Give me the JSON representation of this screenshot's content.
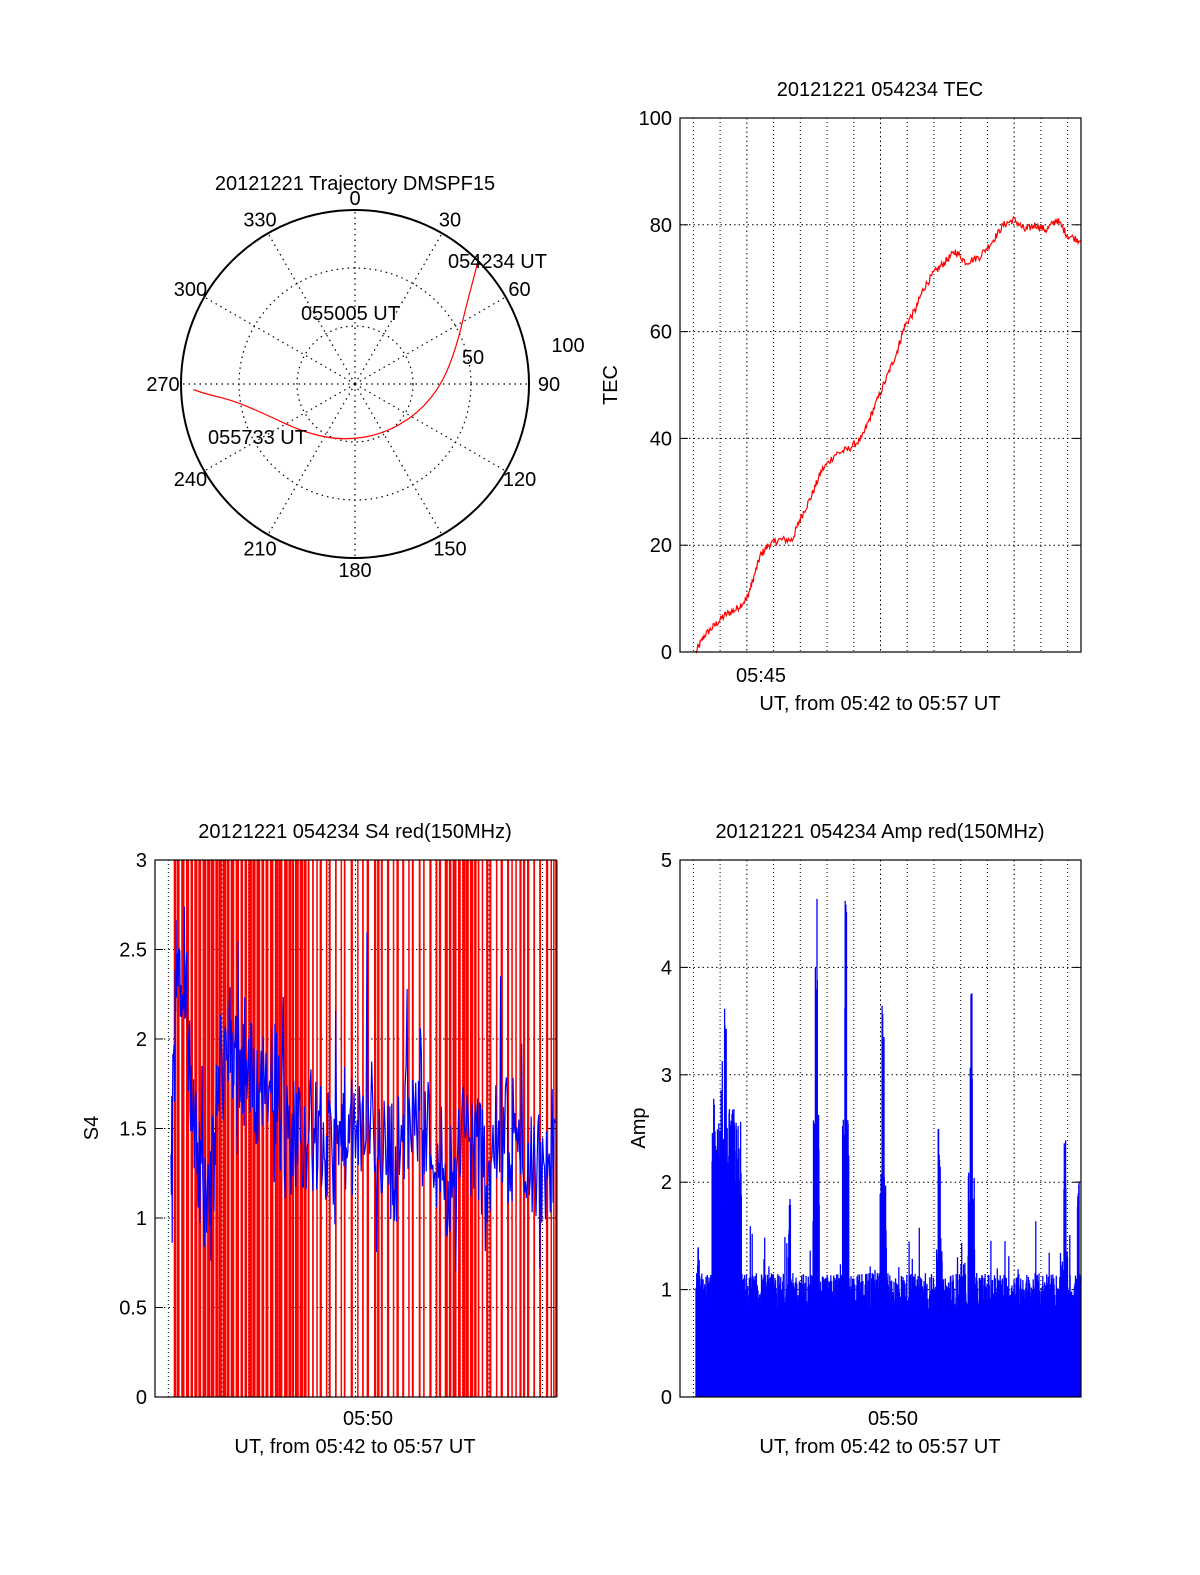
{
  "chart_data": [
    {
      "type": "polar",
      "title": "20121221 Trajectory DMSPF15",
      "angle_ticks": [
        "0",
        "30",
        "60",
        "90",
        "120",
        "150",
        "180",
        "210",
        "240",
        "270",
        "300",
        "330"
      ],
      "radius_ticks": [
        "50",
        "100"
      ],
      "radius_max": 100,
      "trajectory": {
        "color": "#ff0000",
        "points": [
          {
            "az": 45,
            "r": 100
          },
          {
            "az": 48,
            "r": 92
          },
          {
            "az": 55,
            "r": 78
          },
          {
            "az": 70,
            "r": 62
          },
          {
            "az": 90,
            "r": 50
          },
          {
            "az": 115,
            "r": 40
          },
          {
            "az": 150,
            "r": 33
          },
          {
            "az": 190,
            "r": 33
          },
          {
            "az": 225,
            "r": 40
          },
          {
            "az": 252,
            "r": 55
          },
          {
            "az": 262,
            "r": 70
          },
          {
            "az": 266,
            "r": 85
          },
          {
            "az": 268,
            "r": 93
          }
        ]
      },
      "annotations": [
        {
          "text": "054234 UT",
          "az": 45,
          "r": 100
        },
        {
          "text": "055005 UT",
          "az": 330,
          "r": 35
        },
        {
          "text": "055733 UT",
          "az": 250,
          "r": 96
        }
      ]
    },
    {
      "type": "line",
      "title": "20121221 054234 TEC",
      "xlabel": "UT, from 05:42 to 05:57 UT",
      "ylabel": "TEC",
      "xlim": [
        42.5,
        57.5
      ],
      "ylim": [
        0,
        100
      ],
      "yticks": [
        0,
        20,
        40,
        60,
        80,
        100
      ],
      "xticks": [
        {
          "value": 45,
          "label": "05:45"
        }
      ],
      "grid": true,
      "series": [
        {
          "color": "#ff0000",
          "points": [
            [
              43.1,
              0
            ],
            [
              43.4,
              3
            ],
            [
              43.8,
              5
            ],
            [
              44.2,
              7
            ],
            [
              44.6,
              8
            ],
            [
              45.0,
              10
            ],
            [
              45.2,
              13
            ],
            [
              45.5,
              18
            ],
            [
              45.8,
              20
            ],
            [
              46.2,
              21
            ],
            [
              46.7,
              21
            ],
            [
              47.0,
              25
            ],
            [
              47.4,
              29
            ],
            [
              47.8,
              34
            ],
            [
              48.3,
              37
            ],
            [
              48.8,
              38
            ],
            [
              49.3,
              40
            ],
            [
              49.7,
              45
            ],
            [
              50.2,
              51
            ],
            [
              50.6,
              56
            ],
            [
              50.9,
              61
            ],
            [
              51.3,
              64
            ],
            [
              51.6,
              68
            ],
            [
              52.0,
              71
            ],
            [
              52.4,
              73
            ],
            [
              52.8,
              75
            ],
            [
              53.2,
              73
            ],
            [
              53.7,
              74
            ],
            [
              54.2,
              77
            ],
            [
              54.6,
              80
            ],
            [
              55.0,
              81
            ],
            [
              55.4,
              79
            ],
            [
              55.8,
              80
            ],
            [
              56.2,
              79
            ],
            [
              56.6,
              81
            ],
            [
              57.0,
              78
            ],
            [
              57.5,
              77
            ]
          ]
        }
      ]
    },
    {
      "type": "line",
      "title": "20121221 054234 S4 red(150MHz)",
      "xlabel": "UT, from 05:42 to 05:57 UT",
      "ylabel": "S4",
      "xlim": [
        42.5,
        57.5
      ],
      "ylim": [
        0,
        3
      ],
      "yticks": [
        0,
        0.5,
        1,
        1.5,
        2,
        2.5,
        3
      ],
      "xticks": [
        {
          "value": 50,
          "label": "05:50"
        }
      ],
      "grid": true,
      "series": [
        {
          "color": "#ff0000",
          "style": "dense-spikes",
          "x_range": [
            43.2,
            57.5
          ],
          "y_range": [
            0,
            3
          ]
        },
        {
          "color": "#0000ff",
          "points": [
            [
              43.1,
              1.2
            ],
            [
              43.3,
              2.4
            ],
            [
              43.6,
              2.5
            ],
            [
              43.9,
              1.5
            ],
            [
              44.2,
              1.2
            ],
            [
              44.6,
              1.1
            ],
            [
              44.9,
              1.8
            ],
            [
              45.3,
              2.0
            ],
            [
              45.6,
              1.9
            ],
            [
              46.0,
              1.8
            ],
            [
              46.4,
              1.7
            ],
            [
              46.9,
              1.9
            ],
            [
              47.3,
              1.4
            ],
            [
              47.8,
              1.5
            ],
            [
              48.3,
              1.5
            ],
            [
              48.8,
              1.4
            ],
            [
              49.2,
              1.3
            ],
            [
              49.6,
              1.5
            ],
            [
              50.0,
              1.4
            ],
            [
              50.5,
              1.6
            ],
            [
              51.0,
              1.4
            ],
            [
              51.5,
              1.3
            ],
            [
              52.0,
              1.6
            ],
            [
              52.5,
              1.5
            ],
            [
              53.0,
              1.4
            ],
            [
              53.5,
              1.2
            ],
            [
              54.0,
              1.5
            ],
            [
              54.5,
              1.4
            ],
            [
              55.0,
              1.3
            ],
            [
              55.5,
              1.5
            ],
            [
              56.0,
              1.3
            ],
            [
              56.5,
              1.4
            ],
            [
              57.0,
              1.2
            ],
            [
              57.5,
              1.5
            ]
          ]
        }
      ]
    },
    {
      "type": "bar",
      "title": "20121221 054234 Amp red(150MHz)",
      "xlabel": "UT, from 05:42 to 05:57 UT",
      "ylabel": "Amp",
      "xlim": [
        42.5,
        57.5
      ],
      "ylim": [
        0,
        5
      ],
      "yticks": [
        0,
        1,
        2,
        3,
        4,
        5
      ],
      "xticks": [
        {
          "value": 50,
          "label": "05:50"
        }
      ],
      "grid": true,
      "series": [
        {
          "color": "#0000ff",
          "base_level": 1.1,
          "x_range": [
            43.1,
            57.5
          ],
          "peaks": [
            {
              "x": 43.2,
              "y": 1.4
            },
            {
              "x": 43.8,
              "y": 2.9
            },
            {
              "x": 44.2,
              "y": 3.9
            },
            {
              "x": 44.5,
              "y": 2.7
            },
            {
              "x": 46.6,
              "y": 2.0
            },
            {
              "x": 47.6,
              "y": 4.8
            },
            {
              "x": 48.7,
              "y": 4.7
            },
            {
              "x": 50.1,
              "y": 3.9
            },
            {
              "x": 52.2,
              "y": 2.5
            },
            {
              "x": 53.4,
              "y": 3.8
            },
            {
              "x": 56.9,
              "y": 2.5
            },
            {
              "x": 57.4,
              "y": 2.1
            }
          ]
        }
      ]
    }
  ]
}
